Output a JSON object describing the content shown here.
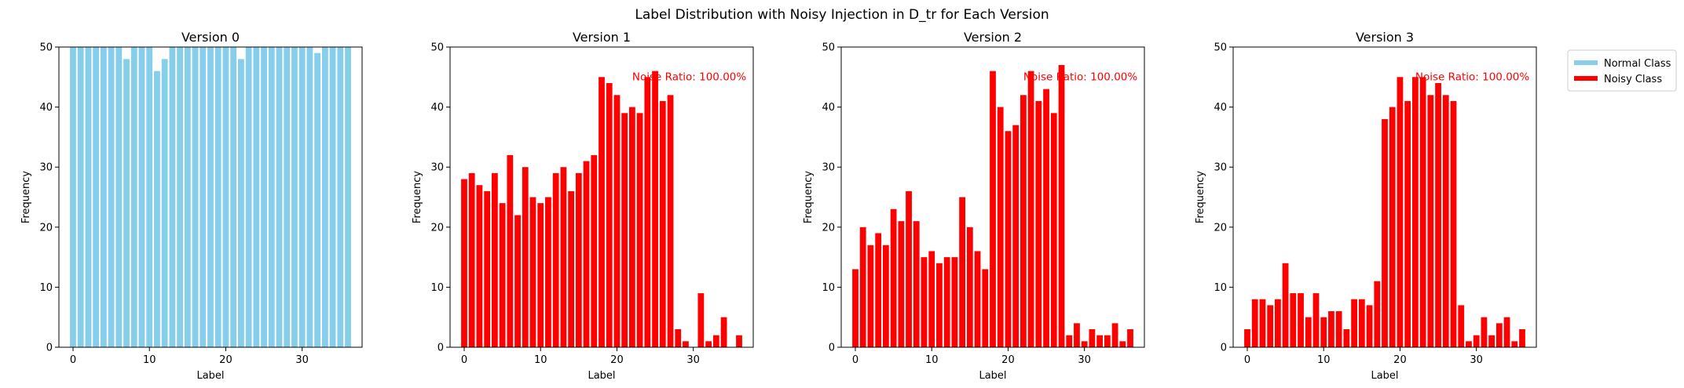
{
  "suptitle": "Label Distribution with Noisy Injection in D_tr for Each Version",
  "legend": {
    "placement": "upper-right-outside",
    "items": [
      {
        "label": "Normal Class",
        "color": "#87CEEB"
      },
      {
        "label": "Noisy Class",
        "color": "#FF0000"
      }
    ]
  },
  "chart_data": [
    {
      "type": "bar",
      "title": "Version 0",
      "xlabel": "Label",
      "ylabel": "Frequency",
      "xlim": [
        -1.85,
        37.85
      ],
      "ylim": [
        0,
        50
      ],
      "xticks": [
        0,
        10,
        20,
        30
      ],
      "yticks": [
        0,
        10,
        20,
        30,
        40,
        50
      ],
      "color": "#87CEEB",
      "x": [
        0,
        1,
        2,
        3,
        4,
        5,
        6,
        7,
        8,
        9,
        10,
        11,
        12,
        13,
        14,
        15,
        16,
        17,
        18,
        19,
        20,
        21,
        22,
        23,
        24,
        25,
        26,
        27,
        28,
        29,
        30,
        31,
        32,
        33,
        34,
        35,
        36
      ],
      "values": [
        50,
        50,
        50,
        50,
        50,
        50,
        50,
        48,
        50,
        50,
        50,
        46,
        48,
        50,
        50,
        50,
        50,
        50,
        50,
        50,
        50,
        50,
        48,
        50,
        50,
        50,
        50,
        50,
        50,
        50,
        50,
        50,
        49,
        50,
        50,
        50,
        50
      ],
      "annotation": ""
    },
    {
      "type": "bar",
      "title": "Version 1",
      "xlabel": "Label",
      "ylabel": "Frequency",
      "xlim": [
        -1.85,
        37.85
      ],
      "ylim": [
        0,
        50
      ],
      "xticks": [
        0,
        10,
        20,
        30
      ],
      "yticks": [
        0,
        10,
        20,
        30,
        40,
        50
      ],
      "color": "#FF0000",
      "x": [
        0,
        1,
        2,
        3,
        4,
        5,
        6,
        7,
        8,
        9,
        10,
        11,
        12,
        13,
        14,
        15,
        16,
        17,
        18,
        19,
        20,
        21,
        22,
        23,
        24,
        25,
        26,
        27,
        28,
        29,
        30,
        31,
        32,
        33,
        34,
        35,
        36
      ],
      "values": [
        28,
        29,
        27,
        26,
        29,
        24,
        32,
        22,
        30,
        25,
        24,
        25,
        29,
        30,
        26,
        29,
        31,
        32,
        45,
        44,
        42,
        39,
        40,
        39,
        45,
        46,
        41,
        42,
        3,
        1,
        0,
        9,
        1,
        2,
        5,
        0,
        2
      ],
      "annotation": "Noise Ratio: 100.00%"
    },
    {
      "type": "bar",
      "title": "Version 2",
      "xlabel": "Label",
      "ylabel": "Frequency",
      "xlim": [
        -1.85,
        37.85
      ],
      "ylim": [
        0,
        50
      ],
      "xticks": [
        0,
        10,
        20,
        30
      ],
      "yticks": [
        0,
        10,
        20,
        30,
        40,
        50
      ],
      "color": "#FF0000",
      "x": [
        0,
        1,
        2,
        3,
        4,
        5,
        6,
        7,
        8,
        9,
        10,
        11,
        12,
        13,
        14,
        15,
        16,
        17,
        18,
        19,
        20,
        21,
        22,
        23,
        24,
        25,
        26,
        27,
        28,
        29,
        30,
        31,
        32,
        33,
        34,
        35,
        36
      ],
      "values": [
        13,
        20,
        17,
        19,
        17,
        23,
        21,
        26,
        21,
        15,
        16,
        14,
        15,
        15,
        25,
        20,
        16,
        13,
        46,
        40,
        36,
        37,
        42,
        46,
        41,
        43,
        39,
        47,
        2,
        4,
        1,
        3,
        2,
        2,
        4,
        1,
        3
      ],
      "annotation": "Noise Ratio: 100.00%"
    },
    {
      "type": "bar",
      "title": "Version 3",
      "xlabel": "Label",
      "ylabel": "Frequency",
      "xlim": [
        -1.85,
        37.85
      ],
      "ylim": [
        0,
        50
      ],
      "xticks": [
        0,
        10,
        20,
        30
      ],
      "yticks": [
        0,
        10,
        20,
        30,
        40,
        50
      ],
      "color": "#FF0000",
      "x": [
        0,
        1,
        2,
        3,
        4,
        5,
        6,
        7,
        8,
        9,
        10,
        11,
        12,
        13,
        14,
        15,
        16,
        17,
        18,
        19,
        20,
        21,
        22,
        23,
        24,
        25,
        26,
        27,
        28,
        29,
        30,
        31,
        32,
        33,
        34,
        35,
        36
      ],
      "values": [
        3,
        8,
        8,
        7,
        8,
        14,
        9,
        9,
        5,
        9,
        5,
        6,
        6,
        3,
        8,
        8,
        7,
        11,
        38,
        40,
        45,
        41,
        45,
        45,
        42,
        44,
        42,
        41,
        7,
        1,
        2,
        5,
        2,
        4,
        5,
        1,
        3
      ],
      "annotation": "Noise Ratio: 100.00%"
    }
  ]
}
